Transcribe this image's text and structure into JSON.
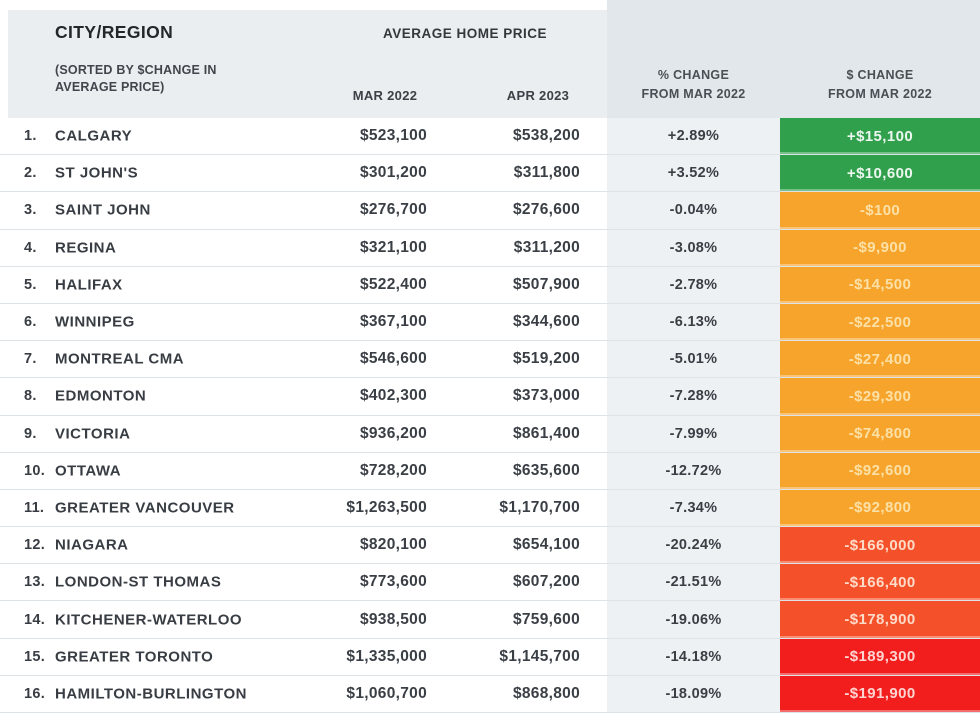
{
  "header": {
    "city_region_label": "CITY/REGION",
    "sort_note": "(SORTED BY $CHANGE IN AVERAGE PRICE)",
    "avg_home_price_label": "AVERAGE HOME PRICE",
    "col_mar": "MAR 2022",
    "col_apr": "APR 2023",
    "col_pct_line1": "% CHANGE",
    "col_pct_line2": "FROM MAR 2022",
    "col_usd_line1": "$ CHANGE",
    "col_usd_line2": "FROM MAR 2022"
  },
  "colors": {
    "green": "#31a04d",
    "orange": "#f7a42c",
    "deep_orange": "#f4512a",
    "red": "#f21d1d"
  },
  "table": {
    "rows": [
      {
        "rank": "1.",
        "city": "CALGARY",
        "mar": "$523,100",
        "apr": "$538,200",
        "pct": "+2.89%",
        "change": "+$15,100",
        "color": "green"
      },
      {
        "rank": "2.",
        "city": "ST JOHN'S",
        "mar": "$301,200",
        "apr": "$311,800",
        "pct": "+3.52%",
        "change": "+$10,600",
        "color": "green"
      },
      {
        "rank": "3.",
        "city": "SAINT JOHN",
        "mar": "$276,700",
        "apr": "$276,600",
        "pct": "-0.04%",
        "change": "-$100",
        "color": "orange"
      },
      {
        "rank": "4.",
        "city": "REGINA",
        "mar": "$321,100",
        "apr": "$311,200",
        "pct": "-3.08%",
        "change": "-$9,900",
        "color": "orange"
      },
      {
        "rank": "5.",
        "city": "HALIFAX",
        "mar": "$522,400",
        "apr": "$507,900",
        "pct": "-2.78%",
        "change": "-$14,500",
        "color": "orange"
      },
      {
        "rank": "6.",
        "city": "WINNIPEG",
        "mar": "$367,100",
        "apr": "$344,600",
        "pct": "-6.13%",
        "change": "-$22,500",
        "color": "orange"
      },
      {
        "rank": "7.",
        "city": "MONTREAL CMA",
        "mar": "$546,600",
        "apr": "$519,200",
        "pct": "-5.01%",
        "change": "-$27,400",
        "color": "orange"
      },
      {
        "rank": "8.",
        "city": "EDMONTON",
        "mar": "$402,300",
        "apr": "$373,000",
        "pct": "-7.28%",
        "change": "-$29,300",
        "color": "orange"
      },
      {
        "rank": "9.",
        "city": "VICTORIA",
        "mar": "$936,200",
        "apr": "$861,400",
        "pct": "-7.99%",
        "change": "-$74,800",
        "color": "orange"
      },
      {
        "rank": "10.",
        "city": "OTTAWA",
        "mar": "$728,200",
        "apr": "$635,600",
        "pct": "-12.72%",
        "change": "-$92,600",
        "color": "orange"
      },
      {
        "rank": "11.",
        "city": "GREATER VANCOUVER",
        "mar": "$1,263,500",
        "apr": "$1,170,700",
        "pct": "-7.34%",
        "change": "-$92,800",
        "color": "orange"
      },
      {
        "rank": "12.",
        "city": "NIAGARA",
        "mar": "$820,100",
        "apr": "$654,100",
        "pct": "-20.24%",
        "change": "-$166,000",
        "color": "deep_orange"
      },
      {
        "rank": "13.",
        "city": "LONDON-ST THOMAS",
        "mar": "$773,600",
        "apr": "$607,200",
        "pct": "-21.51%",
        "change": "-$166,400",
        "color": "deep_orange"
      },
      {
        "rank": "14.",
        "city": "KITCHENER-WATERLOO",
        "mar": "$938,500",
        "apr": "$759,600",
        "pct": "-19.06%",
        "change": "-$178,900",
        "color": "deep_orange"
      },
      {
        "rank": "15.",
        "city": "GREATER TORONTO",
        "mar": "$1,335,000",
        "apr": "$1,145,700",
        "pct": "-14.18%",
        "change": "-$189,300",
        "color": "red"
      },
      {
        "rank": "16.",
        "city": "HAMILTON-BURLINGTON",
        "mar": "$1,060,700",
        "apr": "$868,800",
        "pct": "-18.09%",
        "change": "-$191,900",
        "color": "red"
      }
    ]
  },
  "chart_data": {
    "type": "table",
    "title": "Average home price by city/region, sorted by $ change in average price",
    "columns": [
      "City/Region",
      "Avg price Mar 2022",
      "Avg price Apr 2023",
      "% change from Mar 2022",
      "$ change from Mar 2022"
    ],
    "categories": [
      "Calgary",
      "St John's",
      "Saint John",
      "Regina",
      "Halifax",
      "Winnipeg",
      "Montreal CMA",
      "Edmonton",
      "Victoria",
      "Ottawa",
      "Greater Vancouver",
      "Niagara",
      "London-St Thomas",
      "Kitchener-Waterloo",
      "Greater Toronto",
      "Hamilton-Burlington"
    ],
    "series": [
      {
        "name": "Mar 2022 price",
        "values": [
          523100,
          301200,
          276700,
          321100,
          522400,
          367100,
          546600,
          402300,
          936200,
          728200,
          1263500,
          820100,
          773600,
          938500,
          1335000,
          1060700
        ]
      },
      {
        "name": "Apr 2023 price",
        "values": [
          538200,
          311800,
          276600,
          311200,
          507900,
          344600,
          519200,
          373000,
          861400,
          635600,
          1170700,
          654100,
          607200,
          759600,
          1145700,
          868800
        ]
      },
      {
        "name": "% change from Mar 2022",
        "values": [
          2.89,
          3.52,
          -0.04,
          -3.08,
          -2.78,
          -6.13,
          -5.01,
          -7.28,
          -7.99,
          -12.72,
          -7.34,
          -20.24,
          -21.51,
          -19.06,
          -14.18,
          -18.09
        ]
      },
      {
        "name": "$ change from Mar 2022",
        "values": [
          15100,
          10600,
          -100,
          -9900,
          -14500,
          -22500,
          -27400,
          -29300,
          -74800,
          -92600,
          -92800,
          -166000,
          -166400,
          -178900,
          -189300,
          -191900
        ]
      }
    ],
    "legend_position": "none",
    "grid": "horizontal row separators",
    "color_coding": {
      "green": "positive $ change",
      "orange": "small-to-mid negative $ change",
      "deep_orange": "large negative $ change (~-$166k to -$179k)",
      "red": "largest negative $ change (<= -$189k)"
    }
  }
}
